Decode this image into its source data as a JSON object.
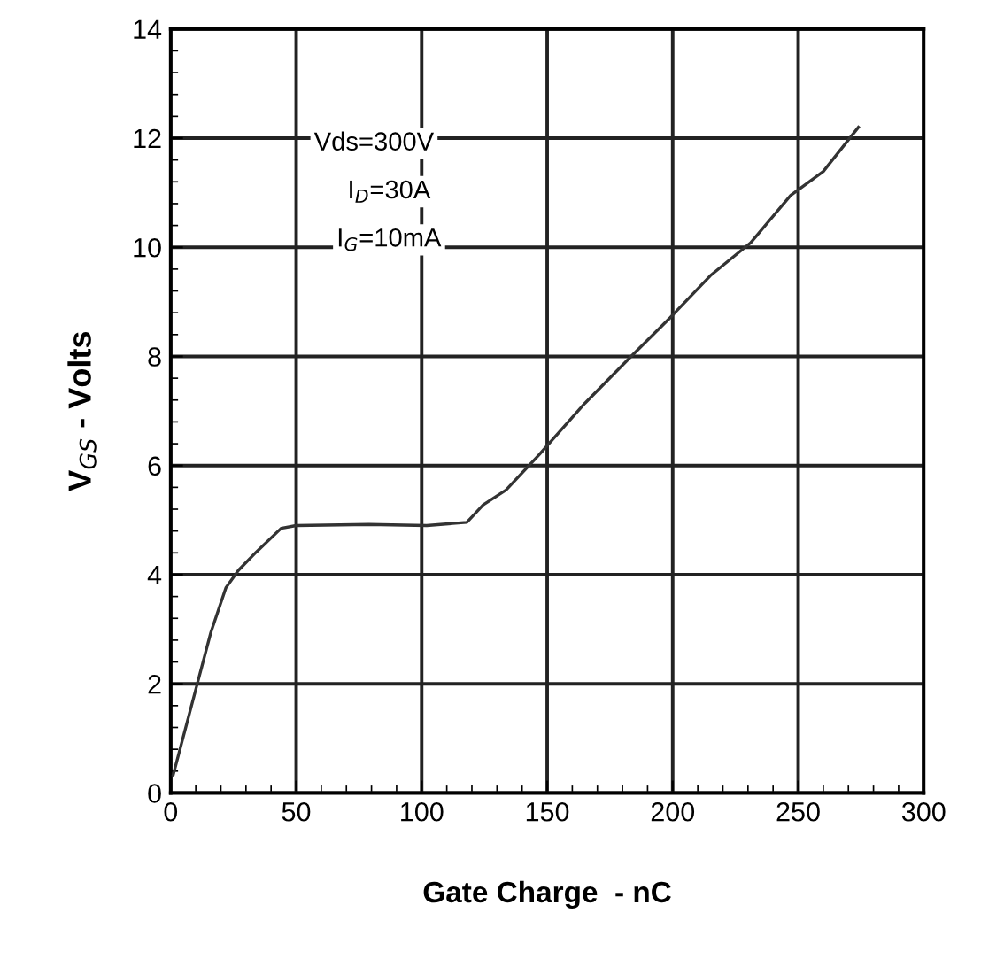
{
  "chart_data": {
    "type": "line",
    "xlabel": "Gate Charge  - nC",
    "ylabel": "V$_{GS}$ - Volts",
    "annotations": [
      "Vds=300V",
      "I$_{D}$=30A",
      "I$_{G}$=10mA"
    ],
    "x": [
      1,
      11,
      16,
      22,
      27,
      34,
      44,
      50,
      79,
      102,
      118,
      124.5,
      133.6,
      147,
      165,
      183,
      199,
      215,
      231,
      247,
      260,
      274
    ],
    "series": [
      {
        "color": "#333333",
        "values": [
          0.33,
          2.07,
          2.94,
          3.76,
          4.08,
          4.41,
          4.85,
          4.9,
          4.92,
          4.9,
          4.96,
          5.28,
          5.55,
          6.21,
          7.14,
          7.98,
          8.71,
          9.48,
          10.08,
          10.95,
          11.39,
          12.2
        ]
      }
    ],
    "xlim": [
      0,
      300
    ],
    "ylim": [
      0,
      14
    ],
    "xticks": [
      0,
      50,
      100,
      150,
      200,
      250,
      300
    ],
    "yticks": [
      0,
      2,
      4,
      6,
      8,
      10,
      12,
      14
    ],
    "grid": true,
    "marker": "none",
    "line_style": "solid"
  }
}
